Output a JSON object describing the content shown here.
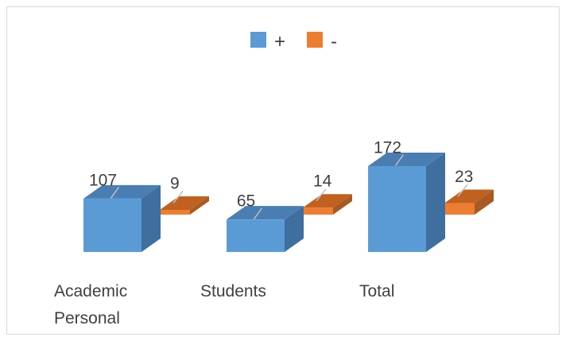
{
  "chart_data": {
    "type": "bar",
    "style": "3d-clustered-column",
    "categories": [
      [
        "Academic",
        "Personal"
      ],
      [
        "Students"
      ],
      [
        "Total"
      ]
    ],
    "series": [
      {
        "name": "+",
        "values": [
          107,
          65,
          172
        ],
        "color": "#5b9bd5",
        "side_color": "#3e6f9e",
        "top_color": "#4a7eb3"
      },
      {
        "name": "-",
        "values": [
          9,
          14,
          23
        ],
        "color": "#ed7d31",
        "side_color": "#a85a22",
        "top_color": "#c0611f"
      }
    ],
    "legend_position": "top",
    "grid": false,
    "axes_visible": false,
    "data_labels": true,
    "ylim": [
      0,
      180
    ]
  }
}
